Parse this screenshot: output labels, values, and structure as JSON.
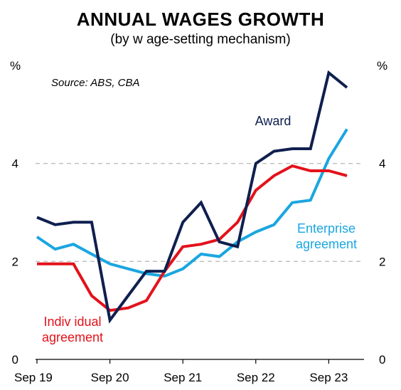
{
  "chart_data": {
    "type": "line",
    "title": "ANNUAL  WAGES  GROWTH",
    "subtitle": "(by w age-setting mechanism)",
    "source": "Source:  ABS, CBA",
    "y_unit_left": "%",
    "y_unit_right": "%",
    "ylim": [
      0,
      6
    ],
    "yticks": [
      0,
      2,
      4
    ],
    "yticks_right": [
      0,
      2,
      4
    ],
    "gridlines_at": [
      2,
      4
    ],
    "grid_style": "dashed",
    "x_tick_labels": [
      "Sep 19",
      "Sep 20",
      "Sep 21",
      "Sep 22",
      "Sep 23"
    ],
    "x_tick_positions": [
      0,
      4,
      8,
      12,
      16
    ],
    "xlim": [
      0,
      18
    ],
    "series": [
      {
        "key": "award",
        "label_lines": [
          "Award"
        ],
        "color": "#0f1f4f",
        "values": [
          2.9,
          2.75,
          2.8,
          2.8,
          0.8,
          1.3,
          1.8,
          1.8,
          2.8,
          3.2,
          2.4,
          2.3,
          4.0,
          4.25,
          4.3,
          4.3,
          5.85,
          5.55
        ]
      },
      {
        "key": "enterprise",
        "label_lines": [
          "Enterprise",
          "agreement"
        ],
        "color": "#1aa6e0",
        "values": [
          2.5,
          2.25,
          2.35,
          2.15,
          1.95,
          1.85,
          1.75,
          1.7,
          1.85,
          2.15,
          2.1,
          2.4,
          2.6,
          2.75,
          3.2,
          3.25,
          4.1,
          4.7
        ]
      },
      {
        "key": "individual",
        "label_lines": [
          "Indiv idual",
          "agreement"
        ],
        "color": "#e3121b",
        "values": [
          1.95,
          1.95,
          1.95,
          1.3,
          1.0,
          1.05,
          1.2,
          1.8,
          2.3,
          2.35,
          2.45,
          2.8,
          3.45,
          3.75,
          3.95,
          3.85,
          3.85,
          3.75
        ]
      }
    ]
  }
}
